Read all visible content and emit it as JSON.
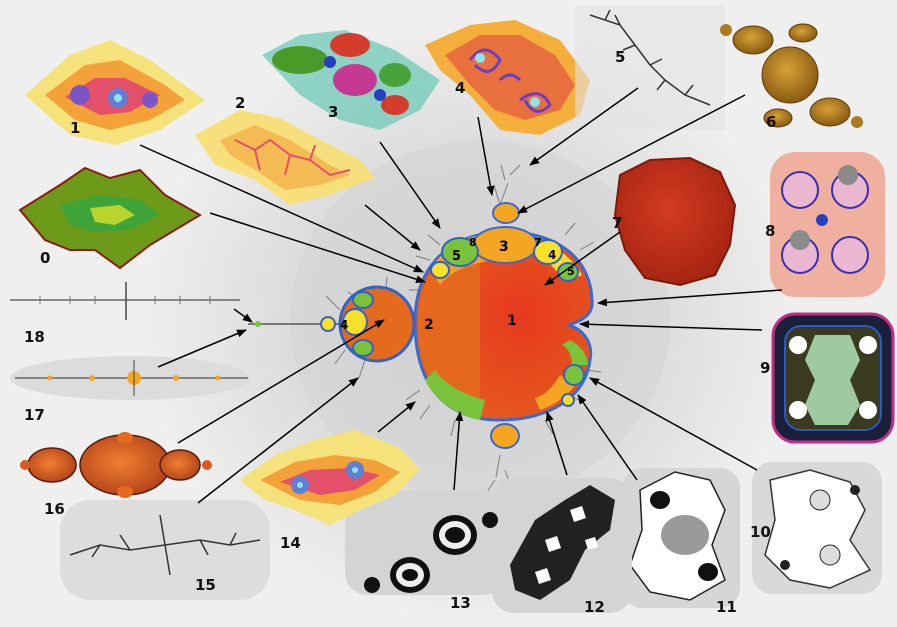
{
  "center_labels": {
    "main_cardioid": "1",
    "period2_bulb": "2",
    "period3_bulb": "3",
    "period4_top": "4",
    "period5_top": "5",
    "period7_top": "7",
    "period8_top": "8",
    "period4_right": "4",
    "period5_right": "5",
    "period4_left_bulb": "4"
  },
  "julia_sets": [
    {
      "id": "0",
      "label": "0",
      "style": "green"
    },
    {
      "id": "1",
      "label": "1",
      "style": "rainbow"
    },
    {
      "id": "2",
      "label": "2",
      "style": "yellow"
    },
    {
      "id": "3",
      "label": "3",
      "style": "propeller"
    },
    {
      "id": "4",
      "label": "4",
      "style": "spiral"
    },
    {
      "id": "5",
      "label": "5",
      "style": "dendrite-gray"
    },
    {
      "id": "6",
      "label": "6",
      "style": "gold-basilica"
    },
    {
      "id": "7",
      "label": "7",
      "style": "red-blob"
    },
    {
      "id": "8",
      "label": "8",
      "style": "pink-fatou"
    },
    {
      "id": "9",
      "label": "9",
      "style": "dark-fatou"
    },
    {
      "id": "10",
      "label": "10",
      "style": "white-fatou"
    },
    {
      "id": "11",
      "label": "11",
      "style": "gray-fatou"
    },
    {
      "id": "12",
      "label": "12",
      "style": "black-dragon"
    },
    {
      "id": "13",
      "label": "13",
      "style": "rings"
    },
    {
      "id": "14",
      "label": "14",
      "style": "rainbow"
    },
    {
      "id": "15",
      "label": "15",
      "style": "dendrite-gray"
    },
    {
      "id": "16",
      "label": "16",
      "style": "orange-basilica"
    },
    {
      "id": "17",
      "label": "17",
      "style": "line-dots"
    },
    {
      "id": "18",
      "label": "18",
      "style": "line"
    }
  ],
  "colors": {
    "background": "#efefef",
    "halo": "#d9d9d9",
    "cardioid": "#e3421f",
    "cardioid_left": "#e46a1e",
    "bulb_orange": "#f4a623",
    "bulb_yellow": "#f7df2a",
    "edge_green": "#79c23a",
    "edge_blue": "#2f63c8",
    "arrow": "#000000"
  }
}
